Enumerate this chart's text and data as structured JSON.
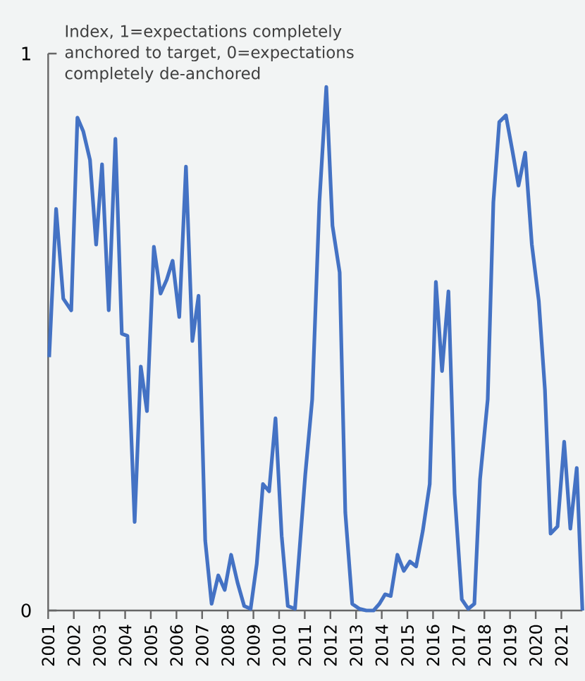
{
  "chart_data": {
    "type": "line",
    "ylabel": "Index, 1=expectations  completely anchored to target, 0=expectations completely de-anchored",
    "x": [
      2001.04,
      2001.31,
      2001.59,
      2001.9,
      2002.14,
      2002.37,
      2002.63,
      2002.87,
      2003.1,
      2003.36,
      2003.62,
      2003.87,
      2004.09,
      2004.37,
      2004.61,
      2004.85,
      2005.12,
      2005.38,
      2005.62,
      2005.85,
      2006.11,
      2006.37,
      2006.62,
      2006.86,
      2007.12,
      2007.37,
      2007.63,
      2007.88,
      2008.13,
      2008.38,
      2008.64,
      2008.89,
      2009.13,
      2009.37,
      2009.61,
      2009.86,
      2010.1,
      2010.34,
      2010.62,
      2011.02,
      2011.29,
      2011.57,
      2011.84,
      2012.08,
      2012.36,
      2012.58,
      2012.85,
      2013.13,
      2013.4,
      2013.68,
      2013.91,
      2014.13,
      2014.35,
      2014.61,
      2014.86,
      2015.1,
      2015.34,
      2015.6,
      2015.87,
      2016.11,
      2016.35,
      2016.6,
      2016.84,
      2017.12,
      2017.37,
      2017.61,
      2017.83,
      2018.13,
      2018.35,
      2018.58,
      2018.84,
      2019.09,
      2019.33,
      2019.59,
      2019.85,
      2020.12,
      2020.36,
      2020.58,
      2020.85,
      2021.11,
      2021.35,
      2021.6,
      2021.82
    ],
    "values": [
      0.455,
      0.721,
      0.56,
      0.539,
      0.885,
      0.86,
      0.809,
      0.657,
      0.801,
      0.539,
      0.847,
      0.497,
      0.493,
      0.159,
      0.438,
      0.358,
      0.653,
      0.569,
      0.594,
      0.628,
      0.527,
      0.797,
      0.484,
      0.565,
      0.126,
      0.012,
      0.063,
      0.037,
      0.1,
      0.05,
      0.008,
      0.003,
      0.084,
      0.227,
      0.214,
      0.345,
      0.134,
      0.008,
      0.003,
      0.244,
      0.379,
      0.733,
      0.94,
      0.691,
      0.607,
      0.176,
      0.012,
      0.003,
      0,
      0,
      0.012,
      0.029,
      0.026,
      0.1,
      0.071,
      0.088,
      0.079,
      0.143,
      0.227,
      0.59,
      0.43,
      0.573,
      0.21,
      0.02,
      0.003,
      0.012,
      0.235,
      0.379,
      0.733,
      0.877,
      0.889,
      0.826,
      0.763,
      0.822,
      0.657,
      0.556,
      0.396,
      0.138,
      0.151,
      0.303,
      0.147,
      0.256,
      0
    ],
    "color": "#4472c4",
    "line_style": "solid",
    "xlim": [
      2001,
      2021.82
    ],
    "ylim": [
      0,
      1
    ],
    "xticks": [
      2001,
      2002,
      2003,
      2004,
      2005,
      2006,
      2007,
      2008,
      2009,
      2010,
      2011,
      2012,
      2013,
      2014,
      2015,
      2016,
      2017,
      2018,
      2019,
      2020,
      2021
    ],
    "yticks": [
      0,
      1
    ]
  }
}
